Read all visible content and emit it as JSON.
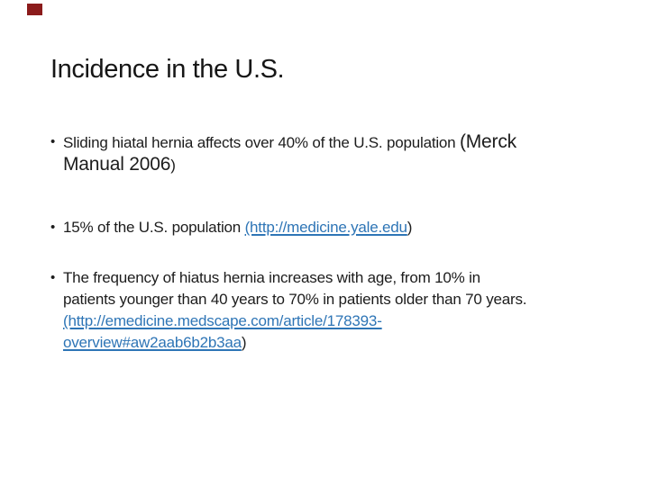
{
  "slide": {
    "title": "Incidence in the U.S.",
    "marker_color": "#8b1b1b",
    "link_color": "#2e75b6",
    "text_color": "#1c1c1c",
    "bullets": [
      {
        "segments": [
          {
            "text": "Sliding hiatal hernia affects over 40% of the U.S. population ",
            "style": "normal"
          },
          {
            "text": "(Merck",
            "style": "cite",
            "break_after": true
          },
          {
            "text": "Manual 2006",
            "style": "cite"
          },
          {
            "text": ")",
            "style": "normal"
          }
        ]
      },
      {
        "segments": [
          {
            "text": "15% of the U.S. population ",
            "style": "normal"
          },
          {
            "text": "(http://medicine.yale.edu",
            "style": "link"
          },
          {
            "text": ")",
            "style": "normal"
          }
        ]
      },
      {
        "segments": [
          {
            "text": "The frequency of hiatus hernia increases with age, from 10% in",
            "style": "normal",
            "break_after": true
          },
          {
            "text": "patients younger than 40 years to 70% in patients older than 70 years.",
            "style": "normal",
            "break_after": true
          },
          {
            "text": "(http://emedicine.medscape.com/article/178393-",
            "style": "link",
            "break_after": true
          },
          {
            "text": "overview#aw2aab6b2b3aa",
            "style": "link"
          },
          {
            "text": ")",
            "style": "normal"
          }
        ]
      }
    ]
  }
}
